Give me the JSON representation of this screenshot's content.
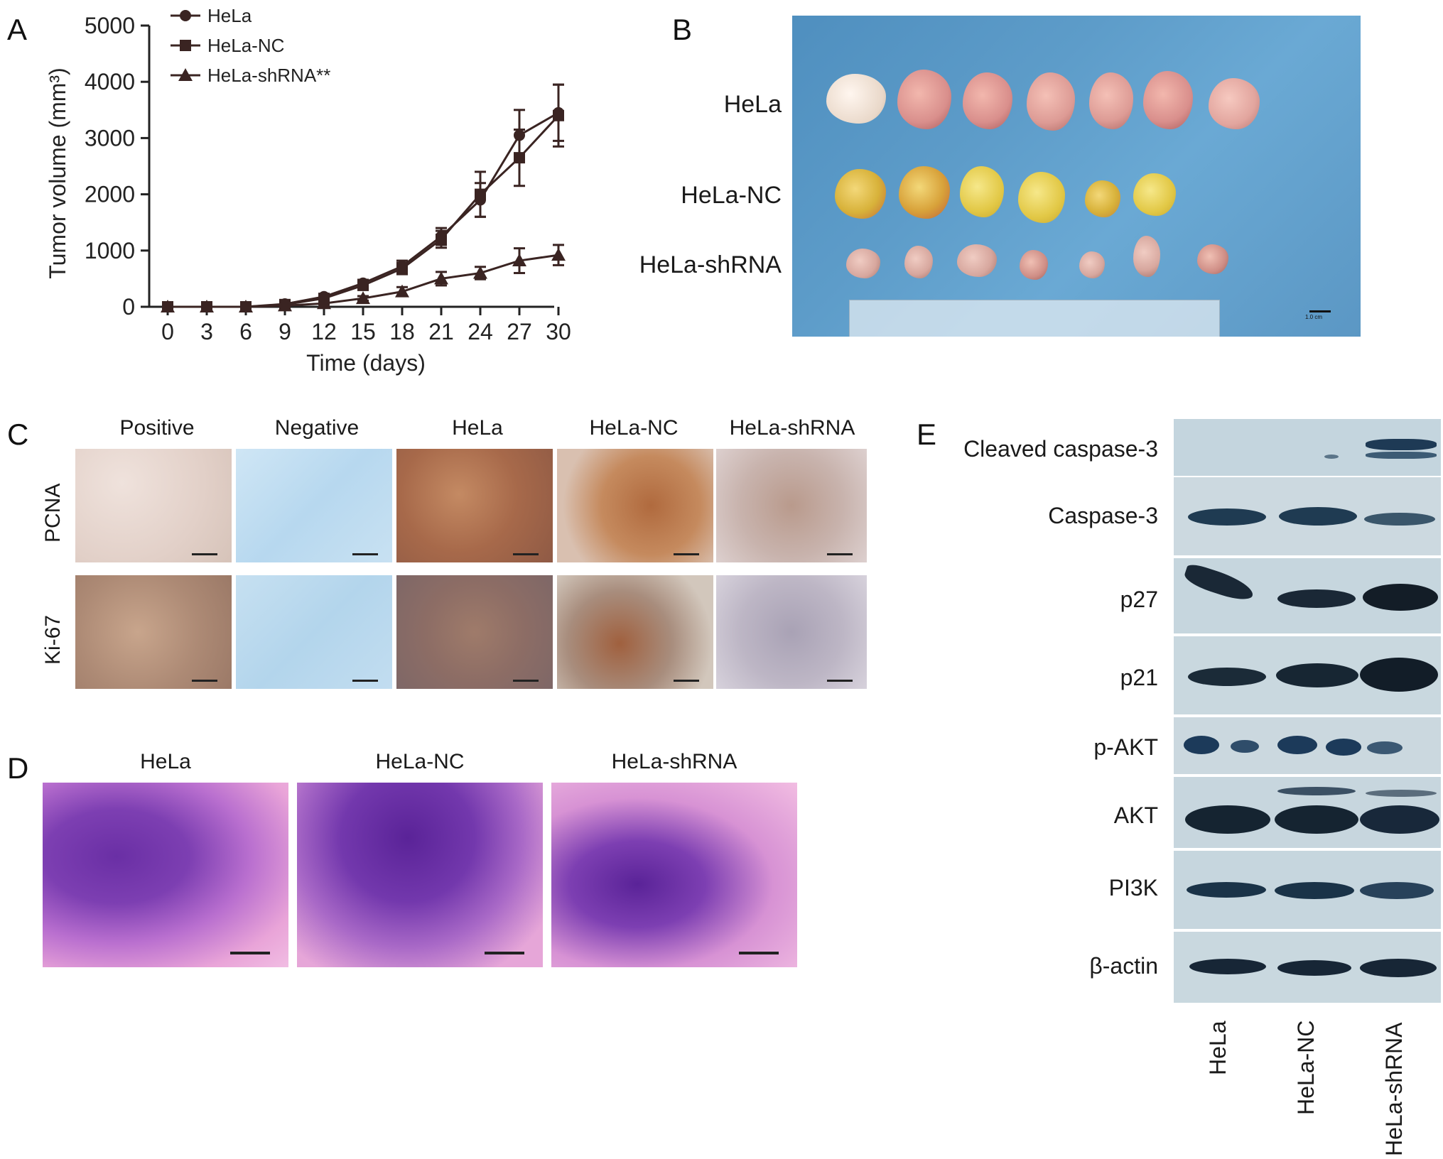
{
  "panels": {
    "a": "A",
    "b": "B",
    "c": "C",
    "d": "D",
    "e": "E"
  },
  "chart_data": {
    "type": "line",
    "xlabel": "Time (days)",
    "ylabel": "Tumor volume (mm³)",
    "x": [
      0,
      3,
      6,
      9,
      12,
      15,
      18,
      21,
      24,
      27,
      30
    ],
    "xlim": [
      0,
      30
    ],
    "ylim": [
      0,
      5000
    ],
    "yticks": [
      0,
      1000,
      2000,
      3000,
      4000,
      5000
    ],
    "grid": false,
    "legend_position": "top-left",
    "series": [
      {
        "name": "HeLa",
        "marker": "circle",
        "values": [
          0,
          0,
          0,
          50,
          180,
          420,
          720,
          1250,
          1900,
          3050,
          3450
        ],
        "errors": [
          0,
          0,
          0,
          20,
          40,
          60,
          100,
          150,
          300,
          450,
          500
        ]
      },
      {
        "name": "HeLa-NC",
        "marker": "square",
        "values": [
          0,
          0,
          0,
          40,
          150,
          380,
          680,
          1200,
          2000,
          2650,
          3400
        ],
        "errors": [
          0,
          0,
          0,
          20,
          40,
          60,
          100,
          150,
          400,
          500,
          550
        ]
      },
      {
        "name": "HeLa-shRNA**",
        "marker": "triangle",
        "values": [
          0,
          0,
          0,
          20,
          60,
          150,
          270,
          500,
          600,
          820,
          920
        ],
        "errors": [
          0,
          0,
          0,
          10,
          20,
          40,
          80,
          120,
          110,
          220,
          180
        ]
      }
    ]
  },
  "panel_b": {
    "rows": [
      "HeLa",
      "HeLa-NC",
      "HeLa-shRNA"
    ],
    "scale_label": "1.0 cm"
  },
  "panel_c": {
    "columns": [
      "Positive",
      "Negative",
      "HeLa",
      "HeLa-NC",
      "HeLa-shRNA"
    ],
    "rows": [
      "PCNA",
      "Ki-67"
    ]
  },
  "panel_d": {
    "columns": [
      "HeLa",
      "HeLa-NC",
      "HeLa-shRNA"
    ]
  },
  "panel_e": {
    "proteins": [
      "Cleaved caspase-3",
      "Caspase-3",
      "p27",
      "p21",
      "p-AKT",
      "AKT",
      "PI3K",
      "β-actin"
    ],
    "lanes": [
      "HeLa",
      "HeLa-NC",
      "HeLa-shRNA"
    ]
  },
  "colors": {
    "line": "#3a2422",
    "tumor_hela": "#d98f8c",
    "tumor_nc": "#d8b23a",
    "tumor_shrna": "#d7a79e",
    "background_blue": "#5d9cc9"
  }
}
